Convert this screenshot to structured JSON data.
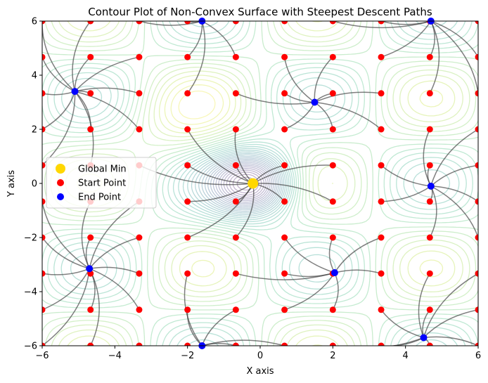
{
  "chart_data": {
    "type": "contour",
    "title": "Contour Plot of Non-Convex Surface with Steepest Descent Paths",
    "xlabel": "X axis",
    "ylabel": "Y axis",
    "xlim": [
      -6,
      6
    ],
    "ylim": [
      -6,
      6
    ],
    "xticks": [
      -6,
      -4,
      -2,
      0,
      2,
      4,
      6
    ],
    "yticks": [
      -6,
      -4,
      -2,
      0,
      2,
      4,
      6
    ],
    "xtick_labels": [
      "−6",
      "−4",
      "−2",
      "0",
      "2",
      "4",
      "6"
    ],
    "ytick_labels": [
      "−6",
      "−4",
      "−2",
      "0",
      "2",
      "4",
      "6"
    ],
    "grid": false,
    "legend_position": "center-left",
    "legend": [
      {
        "label": "Global Min",
        "color": "#ffd700",
        "marker": "circle-large"
      },
      {
        "label": "Start Point",
        "color": "#ff0000",
        "marker": "circle"
      },
      {
        "label": "End Point",
        "color": "#0000ff",
        "marker": "circle"
      }
    ],
    "global_min": {
      "x": -0.2,
      "y": 0.0
    },
    "start_grid": {
      "x": [
        -6,
        -4.67,
        -3.33,
        -2,
        -0.67,
        0.67,
        2,
        3.33,
        4.67,
        6
      ],
      "y": [
        -6,
        -4.67,
        -3.33,
        -2,
        -0.67,
        0.67,
        2,
        3.33,
        4.67,
        6
      ]
    },
    "end_points": [
      {
        "x": -5.1,
        "y": 3.4
      },
      {
        "x": -1.6,
        "y": 6.0
      },
      {
        "x": 1.5,
        "y": 3.0
      },
      {
        "x": 4.7,
        "y": 6.0
      },
      {
        "x": 4.7,
        "y": -0.1
      },
      {
        "x": -4.7,
        "y": -3.15
      },
      {
        "x": 2.05,
        "y": -3.3
      },
      {
        "x": -1.6,
        "y": -6.0
      },
      {
        "x": 4.5,
        "y": -5.7
      },
      {
        "x": -0.2,
        "y": 0.0
      }
    ],
    "colors": {
      "path": "#3a3a3a",
      "start": "#ff0000",
      "end": "#0000ff",
      "global_min": "#ffd700"
    }
  }
}
